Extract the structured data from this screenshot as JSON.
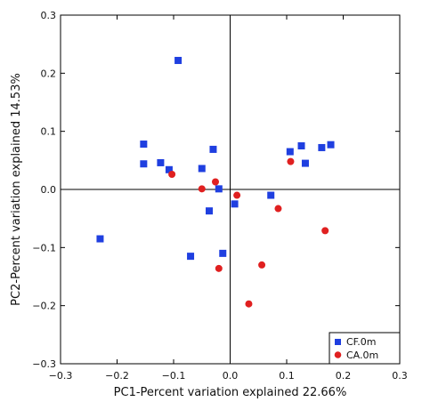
{
  "chart_data": {
    "type": "scatter",
    "title": "",
    "xlabel": "PC1-Percent variation explained 22.66%",
    "ylabel": "PC2-Percent variation explained 14.53%",
    "xlim": [
      -0.3,
      0.3
    ],
    "ylim": [
      -0.3,
      0.3
    ],
    "xticks": [
      -0.3,
      -0.2,
      -0.1,
      0.0,
      0.1,
      0.2,
      0.3
    ],
    "yticks": [
      -0.3,
      -0.2,
      -0.1,
      0.0,
      0.1,
      0.2,
      0.3
    ],
    "xtick_labels": [
      "−0.3",
      "−0.2",
      "−0.1",
      "0.0",
      "0.1",
      "0.2",
      "0.3"
    ],
    "ytick_labels": [
      "−0.3",
      "−0.2",
      "−0.1",
      "0.0",
      "0.1",
      "0.2",
      "0.3"
    ],
    "grid": false,
    "reference_lines": {
      "x": 0,
      "y": 0
    },
    "legend_position": "bottom-right",
    "series": [
      {
        "name": "CF.0m",
        "marker": "square",
        "color": "#1f3fe0",
        "points": [
          [
            -0.092,
            0.222
          ],
          [
            -0.153,
            0.078
          ],
          [
            -0.153,
            0.044
          ],
          [
            -0.123,
            0.046
          ],
          [
            -0.108,
            0.034
          ],
          [
            -0.03,
            0.069
          ],
          [
            -0.05,
            0.036
          ],
          [
            -0.02,
            0.001
          ],
          [
            -0.037,
            -0.037
          ],
          [
            0.008,
            -0.025
          ],
          [
            0.072,
            -0.01
          ],
          [
            -0.07,
            -0.115
          ],
          [
            -0.013,
            -0.11
          ],
          [
            -0.23,
            -0.085
          ],
          [
            0.106,
            0.065
          ],
          [
            0.126,
            0.075
          ],
          [
            0.133,
            0.045
          ],
          [
            0.162,
            0.072
          ],
          [
            0.178,
            0.077
          ]
        ]
      },
      {
        "name": "CA.0m",
        "marker": "circle",
        "color": "#e02020",
        "points": [
          [
            -0.103,
            0.026
          ],
          [
            -0.05,
            0.001
          ],
          [
            -0.026,
            0.013
          ],
          [
            0.012,
            -0.01
          ],
          [
            0.085,
            -0.033
          ],
          [
            0.107,
            0.048
          ],
          [
            0.168,
            -0.071
          ],
          [
            0.056,
            -0.13
          ],
          [
            -0.02,
            -0.136
          ],
          [
            0.033,
            -0.197
          ]
        ]
      }
    ]
  }
}
